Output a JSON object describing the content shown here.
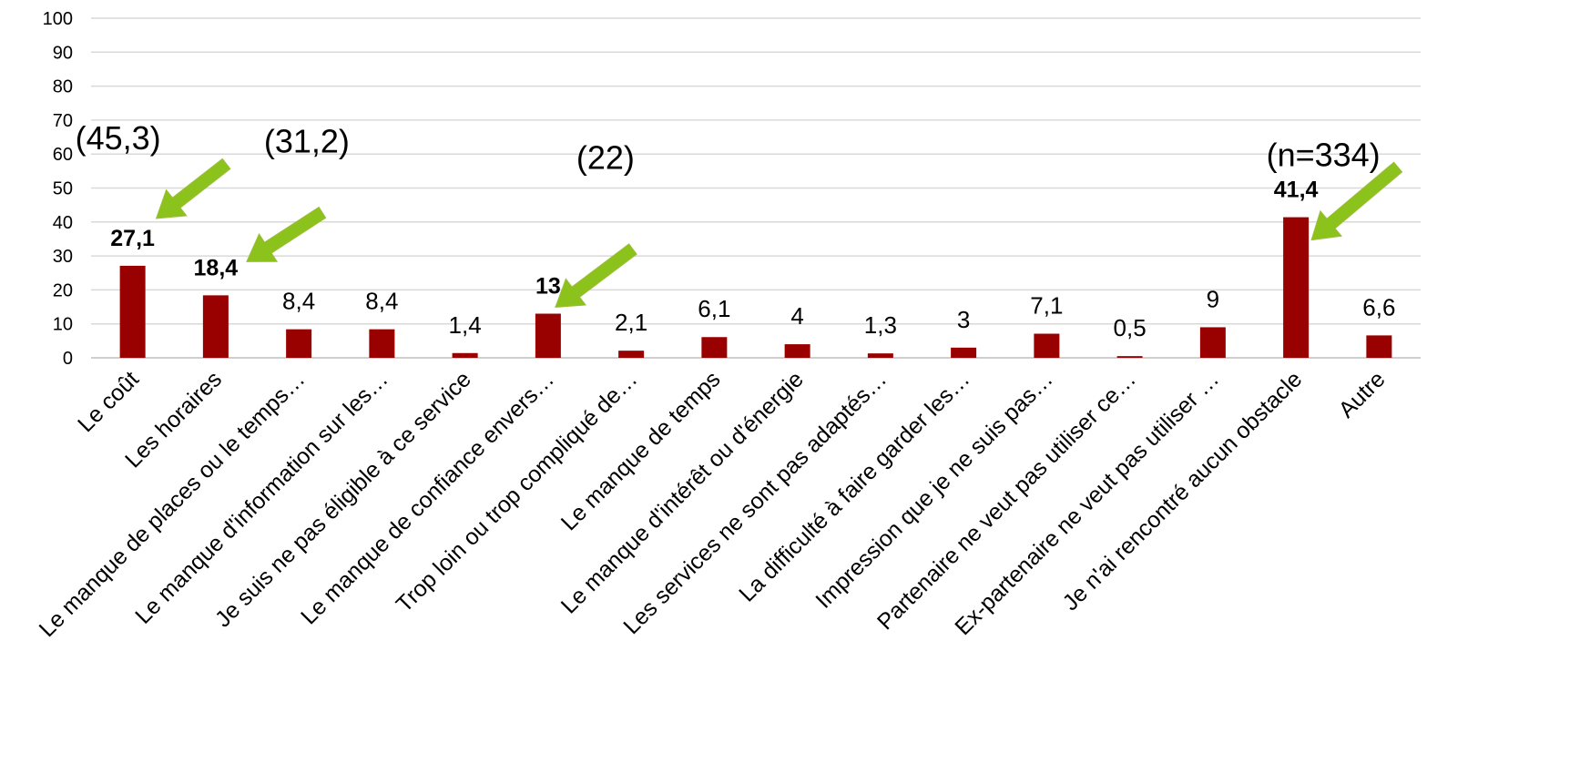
{
  "chart_data": {
    "type": "bar",
    "title": "",
    "xlabel": "",
    "ylabel": "",
    "ylim": [
      0,
      100
    ],
    "yticks": [
      0,
      10,
      20,
      30,
      40,
      50,
      60,
      70,
      80,
      90,
      100
    ],
    "grid": true,
    "legend": "none",
    "colors": {
      "bar": "#990000",
      "grid": "#d9d9d9",
      "arrow": "#8cc21c",
      "text": "#000000"
    },
    "categories": [
      "Le coût",
      "Les horaires",
      "Le manque de places ou le temps…",
      "Le manque d'information sur les…",
      "Je suis ne pas éligible à ce service",
      "Le manque de confiance envers…",
      "Trop loin ou trop compliqué de…",
      "Le manque de temps",
      "Le manque d'intérêt ou d'énergie",
      "Les services ne sont pas adaptés…",
      "La difficulté à faire garder les…",
      "Impression que je ne suis pas…",
      "Partenaire ne veut pas utiliser ce…",
      "Ex-partenaire ne veut pas utiliser …",
      "Je n'ai rencontré aucun obstacle",
      "Autre"
    ],
    "series": [
      {
        "values": [
          27.1,
          18.4,
          8.4,
          8.4,
          1.4,
          13,
          2.1,
          6.1,
          4,
          1.3,
          3,
          7.1,
          0.5,
          9,
          41.4,
          6.6
        ],
        "labels": [
          "27,1",
          "18,4",
          "8,4",
          "8,4",
          "1,4",
          "13",
          "2,1",
          "6,1",
          "4",
          "1,3",
          "3",
          "7,1",
          "0,5",
          "9",
          "41,4",
          "6,6"
        ],
        "bold": [
          true,
          true,
          false,
          false,
          false,
          true,
          false,
          false,
          false,
          false,
          false,
          false,
          false,
          false,
          true,
          false
        ]
      }
    ],
    "annotations": [
      {
        "text": "(45,3)",
        "category_index": 0
      },
      {
        "text": "(31,2)",
        "category_index": 1
      },
      {
        "text": "(22)",
        "category_index": 5
      },
      {
        "text": "(n=334)",
        "category_index": 14
      }
    ]
  }
}
